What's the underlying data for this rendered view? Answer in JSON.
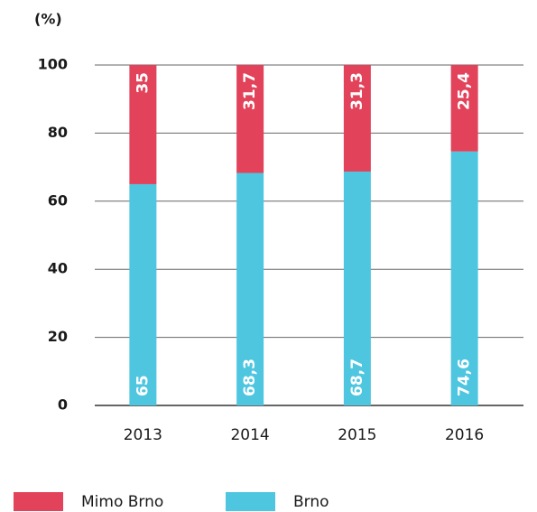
{
  "chart_data": {
    "type": "stacked-bar",
    "ylabel": "(%)",
    "categories": [
      "2013",
      "2014",
      "2015",
      "2016"
    ],
    "series": [
      {
        "name": "Mimo Brno",
        "color": "#e2425a",
        "values": [
          35,
          31.7,
          31.3,
          25.4
        ],
        "value_labels": [
          "35",
          "31,7",
          "31,3",
          "25,4"
        ]
      },
      {
        "name": "Brno",
        "color": "#4ec6e0",
        "values": [
          65,
          68.3,
          68.7,
          74.6
        ],
        "value_labels": [
          "65",
          "68,3",
          "68,7",
          "74,6"
        ]
      }
    ],
    "ylim": [
      0,
      100
    ],
    "yticks": [
      0,
      20,
      40,
      60,
      80,
      100
    ],
    "grid": true
  }
}
